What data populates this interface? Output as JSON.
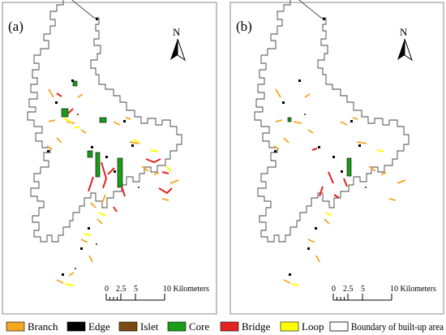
{
  "panels": [
    {
      "label": "(a)",
      "north": "N",
      "scale": {
        "ticks": [
          "0",
          "2.5",
          "5",
          "10 Kilometers"
        ]
      }
    },
    {
      "label": "(b)",
      "north": "N",
      "scale": {
        "ticks": [
          "0",
          "2.5",
          "5",
          "10 Kilometers"
        ]
      }
    }
  ],
  "legend": [
    {
      "label": "Branch",
      "color": "#f5a623"
    },
    {
      "label": "Edge",
      "color": "#000000"
    },
    {
      "label": "Islet",
      "color": "#7a4a12"
    },
    {
      "label": "Core",
      "color": "#1a9e1a"
    },
    {
      "label": "Bridge",
      "color": "#e32222"
    },
    {
      "label": "Loop",
      "color": "#ffff00"
    },
    {
      "label": "Boundary of built-up area",
      "color": "#ffffff"
    }
  ]
}
